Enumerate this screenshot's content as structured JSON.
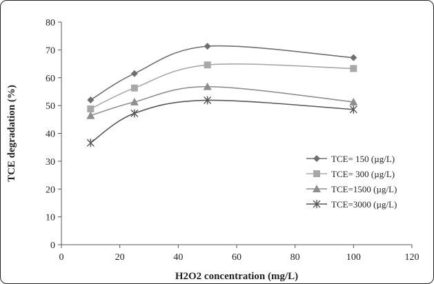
{
  "chart_data": {
    "type": "line",
    "title": "",
    "xlabel": "H2O2 concentration (mg/L)",
    "ylabel": "TCE degradation (%)",
    "xlim": [
      0,
      120
    ],
    "ylim": [
      0,
      80
    ],
    "xticks": [
      0,
      20,
      40,
      60,
      80,
      100,
      120
    ],
    "yticks": [
      0,
      10,
      20,
      30,
      40,
      50,
      60,
      70,
      80
    ],
    "x": [
      10,
      25,
      50,
      100
    ],
    "grid": false,
    "legend_position": "right",
    "series": [
      {
        "name": "TCE= 150 (µg/L)",
        "values": [
          52,
          61.5,
          71.3,
          67.2
        ],
        "color": "#6e6e6e",
        "marker": "diamond"
      },
      {
        "name": "TCE= 300 (µg/L)",
        "values": [
          48.8,
          56.3,
          64.6,
          63.3
        ],
        "color": "#a8a8a8",
        "marker": "square"
      },
      {
        "name": "TCE=1500 (µg/L)",
        "values": [
          46.4,
          51.3,
          56.8,
          51.3
        ],
        "color": "#8e8e8e",
        "marker": "triangle"
      },
      {
        "name": "TCE=3000 (µg/L)",
        "values": [
          36.6,
          47.2,
          51.9,
          48.6
        ],
        "color": "#555555",
        "marker": "star"
      }
    ]
  }
}
